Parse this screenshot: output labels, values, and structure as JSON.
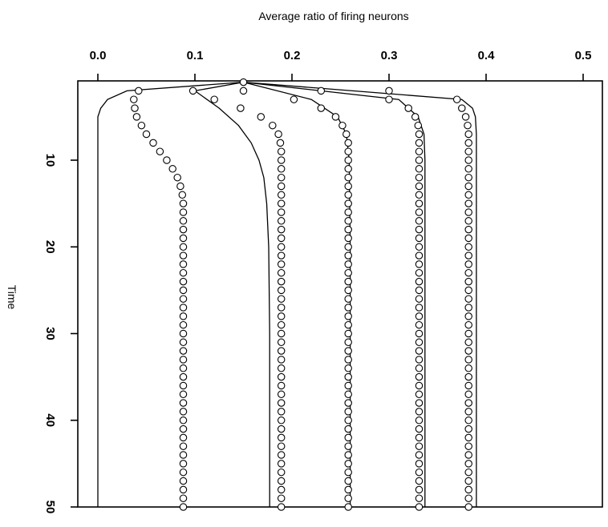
{
  "chart_data": {
    "type": "line",
    "title": "",
    "xlabel": "Average ratio of firing neurons",
    "ylabel": "Time",
    "x_axis_position": "top",
    "y_axis_inverted": true,
    "xlim": [
      -0.02,
      0.52
    ],
    "ylim": [
      1,
      50
    ],
    "grid": false,
    "legend": "none",
    "x_ticks": [
      0.0,
      0.1,
      0.2,
      0.3,
      0.4,
      0.5
    ],
    "x_tick_labels": [
      "0.0",
      "0.1",
      "0.2",
      "0.3",
      "0.4",
      "0.5"
    ],
    "y_ticks": [
      10,
      20,
      30,
      40,
      50
    ],
    "y_tick_labels": [
      "10",
      "20",
      "30",
      "40",
      "50"
    ],
    "series": [
      {
        "style": "line",
        "points": [
          [
            0.15,
            1
          ],
          [
            0.03,
            2
          ],
          [
            0.01,
            3
          ],
          [
            0.003,
            4
          ],
          [
            0,
            5
          ],
          [
            0,
            8
          ],
          [
            0,
            12
          ],
          [
            0,
            20
          ],
          [
            0,
            30
          ],
          [
            0,
            40
          ],
          [
            0,
            50
          ]
        ]
      },
      {
        "style": "line",
        "points": [
          [
            0.15,
            1
          ],
          [
            0.1,
            2
          ],
          [
            0.125,
            4
          ],
          [
            0.145,
            6
          ],
          [
            0.158,
            8
          ],
          [
            0.166,
            10
          ],
          [
            0.171,
            12
          ],
          [
            0.174,
            15
          ],
          [
            0.176,
            20
          ],
          [
            0.177,
            30
          ],
          [
            0.177,
            40
          ],
          [
            0.177,
            50
          ]
        ]
      },
      {
        "style": "line",
        "points": [
          [
            0.15,
            1
          ],
          [
            0.22,
            3
          ],
          [
            0.247,
            5
          ],
          [
            0.256,
            7
          ],
          [
            0.259,
            10
          ],
          [
            0.26,
            20
          ],
          [
            0.26,
            30
          ],
          [
            0.26,
            40
          ],
          [
            0.26,
            50
          ]
        ]
      },
      {
        "style": "line",
        "points": [
          [
            0.15,
            1
          ],
          [
            0.31,
            3
          ],
          [
            0.33,
            5
          ],
          [
            0.336,
            7
          ],
          [
            0.337,
            10
          ],
          [
            0.337,
            20
          ],
          [
            0.337,
            30
          ],
          [
            0.337,
            40
          ],
          [
            0.337,
            50
          ]
        ]
      },
      {
        "style": "line",
        "points": [
          [
            0.15,
            1
          ],
          [
            0.375,
            3
          ],
          [
            0.386,
            4
          ],
          [
            0.389,
            5
          ],
          [
            0.39,
            7
          ],
          [
            0.39,
            10
          ],
          [
            0.39,
            20
          ],
          [
            0.39,
            30
          ],
          [
            0.39,
            40
          ],
          [
            0.39,
            50
          ]
        ]
      },
      {
        "style": "markers",
        "points": [
          [
            0.042,
            2
          ],
          [
            0.037,
            3
          ],
          [
            0.038,
            4
          ],
          [
            0.04,
            5
          ],
          [
            0.045,
            6
          ],
          [
            0.05,
            7
          ],
          [
            0.057,
            8
          ],
          [
            0.064,
            9
          ],
          [
            0.071,
            10
          ],
          [
            0.077,
            11
          ],
          [
            0.082,
            12
          ],
          [
            0.085,
            13
          ],
          [
            0.087,
            14
          ],
          [
            0.088,
            15
          ],
          [
            0.088,
            16
          ],
          [
            0.088,
            17
          ],
          [
            0.088,
            18
          ],
          [
            0.088,
            19
          ],
          [
            0.088,
            20
          ],
          [
            0.088,
            21
          ],
          [
            0.088,
            22
          ],
          [
            0.088,
            23
          ],
          [
            0.088,
            24
          ],
          [
            0.088,
            25
          ],
          [
            0.088,
            26
          ],
          [
            0.088,
            27
          ],
          [
            0.088,
            28
          ],
          [
            0.088,
            29
          ],
          [
            0.088,
            30
          ],
          [
            0.088,
            31
          ],
          [
            0.088,
            32
          ],
          [
            0.088,
            33
          ],
          [
            0.088,
            34
          ],
          [
            0.088,
            35
          ],
          [
            0.088,
            36
          ],
          [
            0.088,
            37
          ],
          [
            0.088,
            38
          ],
          [
            0.088,
            39
          ],
          [
            0.088,
            40
          ],
          [
            0.088,
            41
          ],
          [
            0.088,
            42
          ],
          [
            0.088,
            43
          ],
          [
            0.088,
            44
          ],
          [
            0.088,
            45
          ],
          [
            0.088,
            46
          ],
          [
            0.088,
            47
          ],
          [
            0.088,
            48
          ],
          [
            0.088,
            49
          ],
          [
            0.088,
            50
          ]
        ]
      },
      {
        "style": "markers",
        "points": [
          [
            0.15,
            1
          ],
          [
            0.098,
            2
          ],
          [
            0.12,
            3
          ],
          [
            0.147,
            4
          ],
          [
            0.168,
            5
          ],
          [
            0.18,
            6
          ],
          [
            0.186,
            7
          ],
          [
            0.188,
            8
          ],
          [
            0.189,
            9
          ],
          [
            0.189,
            10
          ],
          [
            0.189,
            11
          ],
          [
            0.189,
            12
          ],
          [
            0.189,
            13
          ],
          [
            0.189,
            14
          ],
          [
            0.189,
            15
          ],
          [
            0.189,
            16
          ],
          [
            0.189,
            17
          ],
          [
            0.189,
            18
          ],
          [
            0.189,
            19
          ],
          [
            0.189,
            20
          ],
          [
            0.189,
            21
          ],
          [
            0.189,
            22
          ],
          [
            0.189,
            23
          ],
          [
            0.189,
            24
          ],
          [
            0.189,
            25
          ],
          [
            0.189,
            26
          ],
          [
            0.189,
            27
          ],
          [
            0.189,
            28
          ],
          [
            0.189,
            29
          ],
          [
            0.189,
            30
          ],
          [
            0.189,
            31
          ],
          [
            0.189,
            32
          ],
          [
            0.189,
            33
          ],
          [
            0.189,
            34
          ],
          [
            0.189,
            35
          ],
          [
            0.189,
            36
          ],
          [
            0.189,
            37
          ],
          [
            0.189,
            38
          ],
          [
            0.189,
            39
          ],
          [
            0.189,
            40
          ],
          [
            0.189,
            41
          ],
          [
            0.189,
            42
          ],
          [
            0.189,
            43
          ],
          [
            0.189,
            44
          ],
          [
            0.189,
            45
          ],
          [
            0.189,
            46
          ],
          [
            0.189,
            47
          ],
          [
            0.189,
            48
          ],
          [
            0.189,
            49
          ],
          [
            0.189,
            50
          ]
        ]
      },
      {
        "style": "markers",
        "points": [
          [
            0.15,
            2
          ],
          [
            0.202,
            3
          ],
          [
            0.23,
            4
          ],
          [
            0.245,
            5
          ],
          [
            0.252,
            6
          ],
          [
            0.256,
            7
          ],
          [
            0.258,
            8
          ],
          [
            0.258,
            9
          ],
          [
            0.258,
            10
          ],
          [
            0.258,
            11
          ],
          [
            0.258,
            12
          ],
          [
            0.258,
            13
          ],
          [
            0.258,
            14
          ],
          [
            0.258,
            15
          ],
          [
            0.258,
            16
          ],
          [
            0.258,
            17
          ],
          [
            0.258,
            18
          ],
          [
            0.258,
            19
          ],
          [
            0.258,
            20
          ],
          [
            0.258,
            21
          ],
          [
            0.258,
            22
          ],
          [
            0.258,
            23
          ],
          [
            0.258,
            24
          ],
          [
            0.258,
            25
          ],
          [
            0.258,
            26
          ],
          [
            0.258,
            27
          ],
          [
            0.258,
            28
          ],
          [
            0.258,
            29
          ],
          [
            0.258,
            30
          ],
          [
            0.258,
            31
          ],
          [
            0.258,
            32
          ],
          [
            0.258,
            33
          ],
          [
            0.258,
            34
          ],
          [
            0.258,
            35
          ],
          [
            0.258,
            36
          ],
          [
            0.258,
            37
          ],
          [
            0.258,
            38
          ],
          [
            0.258,
            39
          ],
          [
            0.258,
            40
          ],
          [
            0.258,
            41
          ],
          [
            0.258,
            42
          ],
          [
            0.258,
            43
          ],
          [
            0.258,
            44
          ],
          [
            0.258,
            45
          ],
          [
            0.258,
            46
          ],
          [
            0.258,
            47
          ],
          [
            0.258,
            48
          ],
          [
            0.258,
            49
          ],
          [
            0.258,
            50
          ]
        ]
      },
      {
        "style": "markers",
        "points": [
          [
            0.23,
            2
          ],
          [
            0.3,
            3
          ],
          [
            0.32,
            4
          ],
          [
            0.327,
            5
          ],
          [
            0.33,
            6
          ],
          [
            0.331,
            7
          ],
          [
            0.331,
            8
          ],
          [
            0.331,
            9
          ],
          [
            0.331,
            10
          ],
          [
            0.331,
            11
          ],
          [
            0.331,
            12
          ],
          [
            0.331,
            13
          ],
          [
            0.331,
            14
          ],
          [
            0.331,
            15
          ],
          [
            0.331,
            16
          ],
          [
            0.331,
            17
          ],
          [
            0.331,
            18
          ],
          [
            0.331,
            19
          ],
          [
            0.331,
            20
          ],
          [
            0.331,
            21
          ],
          [
            0.331,
            22
          ],
          [
            0.331,
            23
          ],
          [
            0.331,
            24
          ],
          [
            0.331,
            25
          ],
          [
            0.331,
            26
          ],
          [
            0.331,
            27
          ],
          [
            0.331,
            28
          ],
          [
            0.331,
            29
          ],
          [
            0.331,
            30
          ],
          [
            0.331,
            31
          ],
          [
            0.331,
            32
          ],
          [
            0.331,
            33
          ],
          [
            0.331,
            34
          ],
          [
            0.331,
            35
          ],
          [
            0.331,
            36
          ],
          [
            0.331,
            37
          ],
          [
            0.331,
            38
          ],
          [
            0.331,
            39
          ],
          [
            0.331,
            40
          ],
          [
            0.331,
            41
          ],
          [
            0.331,
            42
          ],
          [
            0.331,
            43
          ],
          [
            0.331,
            44
          ],
          [
            0.331,
            45
          ],
          [
            0.331,
            46
          ],
          [
            0.331,
            47
          ],
          [
            0.331,
            48
          ],
          [
            0.331,
            49
          ],
          [
            0.331,
            50
          ]
        ]
      },
      {
        "style": "markers",
        "points": [
          [
            0.3,
            2
          ],
          [
            0.37,
            3
          ],
          [
            0.375,
            4
          ],
          [
            0.379,
            5
          ],
          [
            0.381,
            6
          ],
          [
            0.382,
            7
          ],
          [
            0.382,
            8
          ],
          [
            0.382,
            9
          ],
          [
            0.382,
            10
          ],
          [
            0.382,
            11
          ],
          [
            0.382,
            12
          ],
          [
            0.382,
            13
          ],
          [
            0.382,
            14
          ],
          [
            0.382,
            15
          ],
          [
            0.382,
            16
          ],
          [
            0.382,
            17
          ],
          [
            0.382,
            18
          ],
          [
            0.382,
            19
          ],
          [
            0.382,
            20
          ],
          [
            0.382,
            21
          ],
          [
            0.382,
            22
          ],
          [
            0.382,
            23
          ],
          [
            0.382,
            24
          ],
          [
            0.382,
            25
          ],
          [
            0.382,
            26
          ],
          [
            0.382,
            27
          ],
          [
            0.382,
            28
          ],
          [
            0.382,
            29
          ],
          [
            0.382,
            30
          ],
          [
            0.382,
            31
          ],
          [
            0.382,
            32
          ],
          [
            0.382,
            33
          ],
          [
            0.382,
            34
          ],
          [
            0.382,
            35
          ],
          [
            0.382,
            36
          ],
          [
            0.382,
            37
          ],
          [
            0.382,
            38
          ],
          [
            0.382,
            39
          ],
          [
            0.382,
            40
          ],
          [
            0.382,
            41
          ],
          [
            0.382,
            42
          ],
          [
            0.382,
            43
          ],
          [
            0.382,
            44
          ],
          [
            0.382,
            45
          ],
          [
            0.382,
            46
          ],
          [
            0.382,
            47
          ],
          [
            0.382,
            48
          ],
          [
            0.382,
            49
          ],
          [
            0.382,
            50
          ]
        ]
      }
    ]
  }
}
